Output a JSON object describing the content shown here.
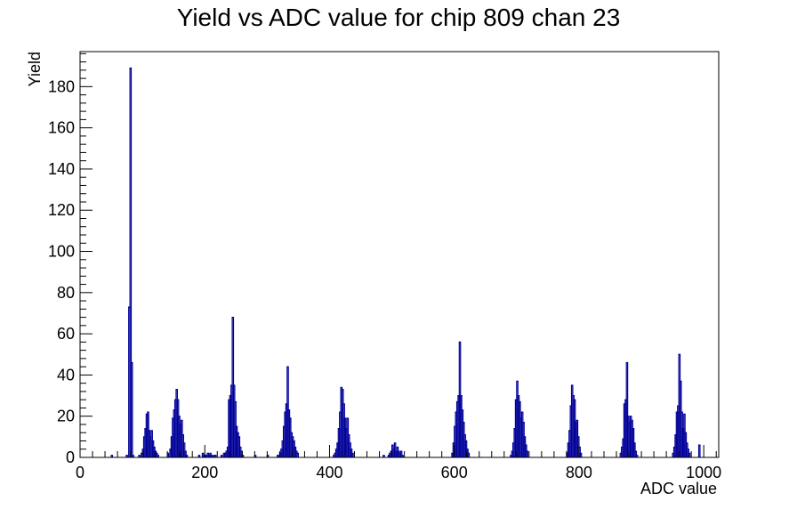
{
  "chart_data": {
    "type": "bar",
    "title": "Yield vs ADC value for chip 809 chan 23",
    "xlabel": "ADC value",
    "ylabel": "Yield",
    "xlim": [
      0,
      1024
    ],
    "ylim": [
      0,
      197
    ],
    "x_ticks": [
      0,
      200,
      400,
      600,
      800,
      1000
    ],
    "y_ticks": [
      0,
      20,
      40,
      60,
      80,
      100,
      120,
      140,
      160,
      180
    ],
    "grid": false,
    "line_color": "#000099",
    "bin_width": 2,
    "bins": [
      [
        50,
        1
      ],
      [
        74,
        1
      ],
      [
        78,
        73
      ],
      [
        80,
        189
      ],
      [
        82,
        46
      ],
      [
        84,
        1
      ],
      [
        94,
        1
      ],
      [
        98,
        2
      ],
      [
        100,
        4
      ],
      [
        102,
        10
      ],
      [
        104,
        14
      ],
      [
        106,
        21
      ],
      [
        108,
        22
      ],
      [
        110,
        13
      ],
      [
        112,
        10
      ],
      [
        114,
        13
      ],
      [
        116,
        8
      ],
      [
        118,
        5
      ],
      [
        120,
        3
      ],
      [
        122,
        2
      ],
      [
        124,
        1
      ],
      [
        140,
        2
      ],
      [
        144,
        4
      ],
      [
        146,
        10
      ],
      [
        148,
        19
      ],
      [
        150,
        23
      ],
      [
        152,
        28
      ],
      [
        154,
        33
      ],
      [
        156,
        28
      ],
      [
        158,
        20
      ],
      [
        160,
        16
      ],
      [
        162,
        18
      ],
      [
        164,
        11
      ],
      [
        166,
        7
      ],
      [
        168,
        3
      ],
      [
        170,
        1
      ],
      [
        190,
        1
      ],
      [
        196,
        2
      ],
      [
        198,
        1
      ],
      [
        200,
        1
      ],
      [
        202,
        1
      ],
      [
        204,
        2
      ],
      [
        206,
        1
      ],
      [
        208,
        2
      ],
      [
        210,
        1
      ],
      [
        214,
        1
      ],
      [
        216,
        1
      ],
      [
        226,
        1
      ],
      [
        230,
        2
      ],
      [
        232,
        2
      ],
      [
        234,
        3
      ],
      [
        236,
        5
      ],
      [
        238,
        28
      ],
      [
        240,
        30
      ],
      [
        242,
        35
      ],
      [
        244,
        68
      ],
      [
        246,
        35
      ],
      [
        248,
        27
      ],
      [
        250,
        15
      ],
      [
        252,
        12
      ],
      [
        254,
        10
      ],
      [
        256,
        5
      ],
      [
        258,
        3
      ],
      [
        260,
        1
      ],
      [
        280,
        1
      ],
      [
        300,
        1
      ],
      [
        316,
        1
      ],
      [
        320,
        2
      ],
      [
        322,
        4
      ],
      [
        324,
        8
      ],
      [
        326,
        15
      ],
      [
        328,
        22
      ],
      [
        330,
        26
      ],
      [
        332,
        44
      ],
      [
        334,
        23
      ],
      [
        336,
        19
      ],
      [
        338,
        12
      ],
      [
        340,
        10
      ],
      [
        342,
        8
      ],
      [
        344,
        5
      ],
      [
        346,
        3
      ],
      [
        348,
        2
      ],
      [
        406,
        1
      ],
      [
        408,
        2
      ],
      [
        410,
        4
      ],
      [
        412,
        7
      ],
      [
        414,
        14
      ],
      [
        416,
        22
      ],
      [
        418,
        34
      ],
      [
        420,
        33
      ],
      [
        422,
        26
      ],
      [
        424,
        19
      ],
      [
        426,
        14
      ],
      [
        428,
        19
      ],
      [
        430,
        11
      ],
      [
        432,
        7
      ],
      [
        434,
        4
      ],
      [
        436,
        2
      ],
      [
        486,
        1
      ],
      [
        494,
        1
      ],
      [
        496,
        2
      ],
      [
        498,
        3
      ],
      [
        500,
        6
      ],
      [
        502,
        4
      ],
      [
        504,
        7
      ],
      [
        506,
        3
      ],
      [
        508,
        5
      ],
      [
        510,
        3
      ],
      [
        512,
        2
      ],
      [
        514,
        3
      ],
      [
        516,
        1
      ],
      [
        596,
        2
      ],
      [
        598,
        7
      ],
      [
        600,
        15
      ],
      [
        602,
        22
      ],
      [
        604,
        27
      ],
      [
        606,
        30
      ],
      [
        608,
        56
      ],
      [
        610,
        30
      ],
      [
        612,
        23
      ],
      [
        614,
        17
      ],
      [
        616,
        11
      ],
      [
        618,
        8
      ],
      [
        620,
        4
      ],
      [
        622,
        2
      ],
      [
        690,
        1
      ],
      [
        692,
        3
      ],
      [
        694,
        7
      ],
      [
        696,
        14
      ],
      [
        698,
        28
      ],
      [
        700,
        37
      ],
      [
        702,
        30
      ],
      [
        704,
        27
      ],
      [
        706,
        19
      ],
      [
        708,
        22
      ],
      [
        710,
        17
      ],
      [
        712,
        10
      ],
      [
        714,
        6
      ],
      [
        716,
        3
      ],
      [
        780,
        2
      ],
      [
        782,
        7
      ],
      [
        784,
        13
      ],
      [
        786,
        25
      ],
      [
        788,
        35
      ],
      [
        790,
        30
      ],
      [
        792,
        28
      ],
      [
        794,
        17
      ],
      [
        796,
        18
      ],
      [
        798,
        10
      ],
      [
        800,
        5
      ],
      [
        802,
        2
      ],
      [
        866,
        2
      ],
      [
        868,
        5
      ],
      [
        870,
        9
      ],
      [
        872,
        26
      ],
      [
        874,
        28
      ],
      [
        876,
        46
      ],
      [
        878,
        20
      ],
      [
        880,
        17
      ],
      [
        882,
        20
      ],
      [
        884,
        18
      ],
      [
        886,
        14
      ],
      [
        888,
        7
      ],
      [
        890,
        3
      ],
      [
        892,
        1
      ],
      [
        950,
        2
      ],
      [
        952,
        5
      ],
      [
        954,
        11
      ],
      [
        956,
        22
      ],
      [
        958,
        25
      ],
      [
        960,
        50
      ],
      [
        962,
        37
      ],
      [
        964,
        22
      ],
      [
        966,
        14
      ],
      [
        968,
        21
      ],
      [
        970,
        12
      ],
      [
        972,
        7
      ],
      [
        974,
        4
      ],
      [
        976,
        2
      ],
      [
        992,
        6
      ]
    ]
  }
}
